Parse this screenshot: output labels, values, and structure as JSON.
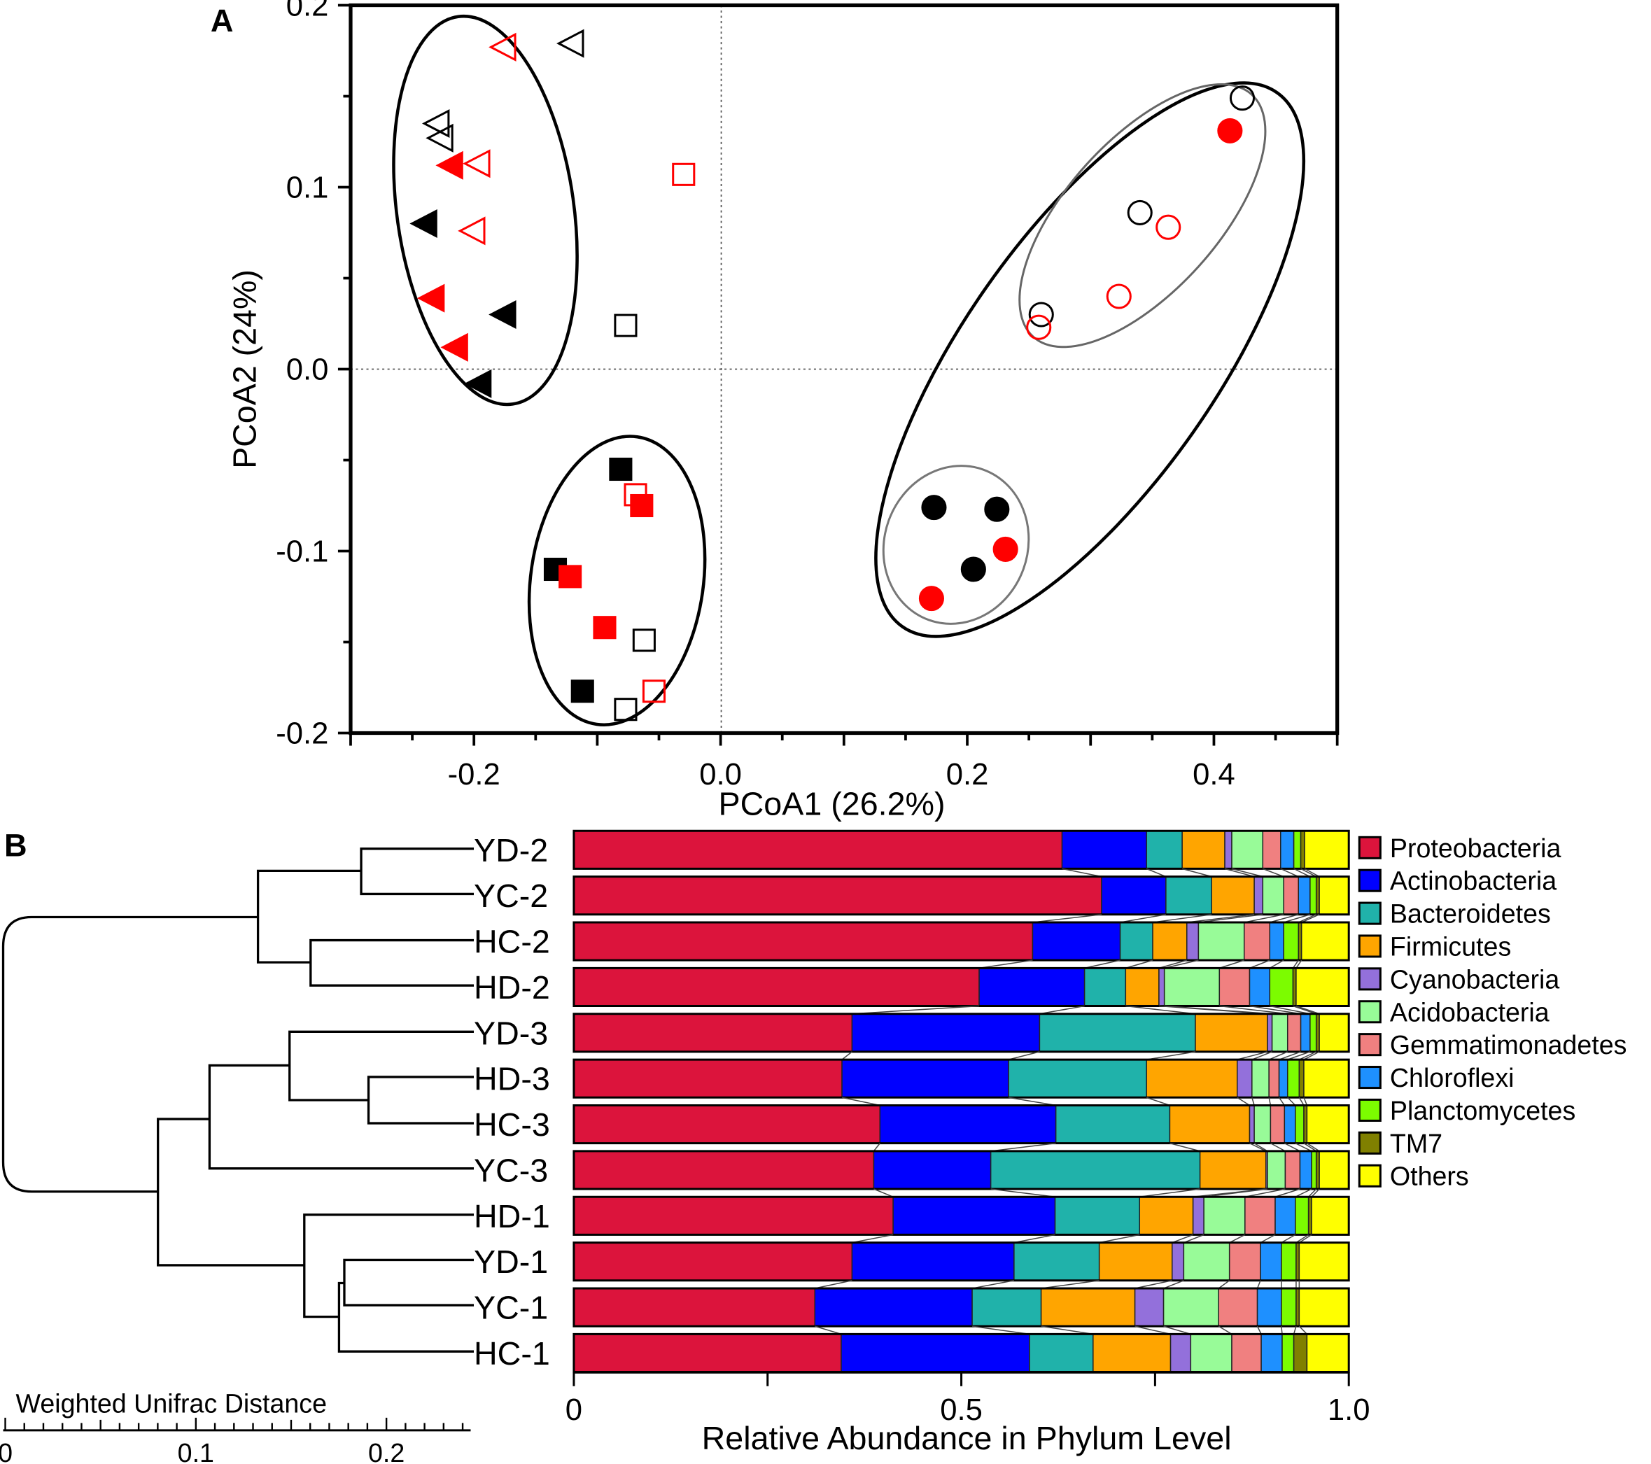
{
  "chart_data": [
    {
      "type": "scatter",
      "panel_label": "A",
      "xlabel": "PCoA1 (26.2%)",
      "ylabel": "PCoA2 (24%)",
      "xlim": [
        -0.3,
        0.5
      ],
      "ylim": [
        -0.2,
        0.2
      ],
      "x_ticks": [
        "-0.2",
        "0.0",
        "0.2",
        "0.4"
      ],
      "x_tick_values": [
        -0.2,
        0.0,
        0.2,
        0.4
      ],
      "y_ticks": [
        "0.2",
        "0.1",
        "0.0",
        "-0.1",
        "-0.2"
      ],
      "y_tick_values": [
        0.2,
        0.1,
        0.0,
        -0.1,
        -0.2
      ],
      "grid": false,
      "reference_lines": [
        0,
        0
      ],
      "series": [
        {
          "marker": "triangle-left",
          "color": "#000000",
          "filled": false,
          "points": [
            [
              -0.121,
              0.179
            ],
            [
              -0.23,
              0.135
            ],
            [
              -0.227,
              0.127
            ]
          ]
        },
        {
          "marker": "triangle-left",
          "color": "#ff0000",
          "filled": false,
          "points": [
            [
              -0.176,
              0.177
            ],
            [
              -0.197,
              0.113
            ],
            [
              -0.201,
              0.076
            ]
          ]
        },
        {
          "marker": "triangle-left",
          "color": "#ff0000",
          "filled": true,
          "points": [
            [
              -0.219,
              0.112
            ],
            [
              -0.234,
              0.039
            ],
            [
              -0.215,
              0.012
            ]
          ]
        },
        {
          "marker": "triangle-left",
          "color": "#000000",
          "filled": true,
          "points": [
            [
              -0.24,
              0.08
            ],
            [
              -0.176,
              0.03
            ],
            [
              -0.196,
              -0.008
            ]
          ]
        },
        {
          "marker": "square",
          "color": "#ff0000",
          "filled": false,
          "points": [
            [
              -0.03,
              0.107
            ],
            [
              -0.069,
              -0.069
            ],
            [
              -0.054,
              -0.177
            ]
          ]
        },
        {
          "marker": "square",
          "color": "#000000",
          "filled": false,
          "points": [
            [
              -0.077,
              0.024
            ],
            [
              -0.062,
              -0.149
            ],
            [
              -0.077,
              -0.187
            ]
          ]
        },
        {
          "marker": "square",
          "color": "#000000",
          "filled": true,
          "points": [
            [
              -0.081,
              -0.055
            ],
            [
              -0.134,
              -0.11
            ],
            [
              -0.112,
              -0.177
            ]
          ]
        },
        {
          "marker": "square",
          "color": "#ff0000",
          "filled": true,
          "points": [
            [
              -0.064,
              -0.075
            ],
            [
              -0.122,
              -0.114
            ],
            [
              -0.094,
              -0.142
            ]
          ]
        },
        {
          "marker": "circle",
          "color": "#000000",
          "filled": false,
          "points": [
            [
              0.423,
              0.149
            ],
            [
              0.34,
              0.086
            ],
            [
              0.26,
              0.03
            ]
          ]
        },
        {
          "marker": "circle",
          "color": "#ff0000",
          "filled": true,
          "points": [
            [
              0.413,
              0.131
            ],
            [
              0.231,
              -0.099
            ],
            [
              0.171,
              -0.126
            ]
          ]
        },
        {
          "marker": "circle",
          "color": "#ff0000",
          "filled": false,
          "points": [
            [
              0.363,
              0.078
            ],
            [
              0.323,
              0.04
            ],
            [
              0.258,
              0.023
            ]
          ]
        },
        {
          "marker": "circle",
          "color": "#000000",
          "filled": true,
          "points": [
            [
              0.173,
              -0.076
            ],
            [
              0.224,
              -0.077
            ],
            [
              0.205,
              -0.11
            ]
          ]
        }
      ]
    },
    {
      "type": "bar",
      "orientation": "horizontal-stacked",
      "panel_label": "B",
      "xlabel": "Relative Abundance in Phylum Level",
      "xlim": [
        0,
        1.0
      ],
      "x_ticks": [
        "0",
        "0.5",
        "1.0"
      ],
      "x_tick_values": [
        0,
        0.5,
        1.0
      ],
      "legend_position": "right",
      "phyla": [
        {
          "name": "Proteobacteria",
          "color": "#dc143c"
        },
        {
          "name": "Actinobacteria",
          "color": "#0000ff"
        },
        {
          "name": "Bacteroidetes",
          "color": "#20b2aa"
        },
        {
          "name": "Firmicutes",
          "color": "#ffa500"
        },
        {
          "name": "Cyanobacteria",
          "color": "#9370db"
        },
        {
          "name": "Acidobacteria",
          "color": "#98fb98"
        },
        {
          "name": "Gemmatimonadetes",
          "color": "#f08080"
        },
        {
          "name": "Chloroflexi",
          "color": "#1e90ff"
        },
        {
          "name": "Planctomycetes",
          "color": "#7cfc00"
        },
        {
          "name": "TM7",
          "color": "#808000"
        },
        {
          "name": "Others",
          "color": "#ffff00"
        }
      ],
      "samples": [
        {
          "name": "YD-2",
          "cumulative": [
            0.63,
            0.739,
            0.785,
            0.84,
            0.849,
            0.889,
            0.912,
            0.929,
            0.938,
            0.943,
            1
          ]
        },
        {
          "name": "YC-2",
          "cumulative": [
            0.681,
            0.764,
            0.823,
            0.878,
            0.889,
            0.916,
            0.935,
            0.95,
            0.958,
            0.962,
            1
          ]
        },
        {
          "name": "HC-2",
          "cumulative": [
            0.592,
            0.705,
            0.747,
            0.791,
            0.806,
            0.865,
            0.898,
            0.916,
            0.935,
            0.939,
            1
          ]
        },
        {
          "name": "HD-2",
          "cumulative": [
            0.523,
            0.659,
            0.712,
            0.755,
            0.762,
            0.833,
            0.872,
            0.898,
            0.928,
            0.932,
            1
          ]
        },
        {
          "name": "YD-3",
          "cumulative": [
            0.359,
            0.601,
            0.802,
            0.895,
            0.901,
            0.921,
            0.938,
            0.95,
            0.958,
            0.962,
            1
          ]
        },
        {
          "name": "HD-3",
          "cumulative": [
            0.346,
            0.561,
            0.739,
            0.856,
            0.875,
            0.897,
            0.91,
            0.921,
            0.936,
            0.942,
            1
          ]
        },
        {
          "name": "HC-3",
          "cumulative": [
            0.395,
            0.622,
            0.769,
            0.872,
            0.878,
            0.899,
            0.917,
            0.931,
            0.942,
            0.946,
            1
          ]
        },
        {
          "name": "YC-3",
          "cumulative": [
            0.387,
            0.538,
            0.808,
            0.893,
            0.895,
            0.918,
            0.937,
            0.952,
            0.958,
            0.962,
            1
          ]
        },
        {
          "name": "HD-1",
          "cumulative": [
            0.412,
            0.621,
            0.73,
            0.799,
            0.813,
            0.866,
            0.905,
            0.931,
            0.948,
            0.952,
            1
          ]
        },
        {
          "name": "YD-1",
          "cumulative": [
            0.359,
            0.568,
            0.678,
            0.772,
            0.787,
            0.846,
            0.886,
            0.913,
            0.932,
            0.936,
            1
          ]
        },
        {
          "name": "YC-1",
          "cumulative": [
            0.311,
            0.514,
            0.603,
            0.724,
            0.761,
            0.832,
            0.882,
            0.913,
            0.932,
            0.936,
            1
          ]
        },
        {
          "name": "HC-1",
          "cumulative": [
            0.345,
            0.588,
            0.67,
            0.77,
            0.796,
            0.849,
            0.887,
            0.914,
            0.929,
            0.946,
            1
          ]
        }
      ]
    },
    {
      "type": "dendrogram",
      "scale_title": "Weighted Unifrac Distance",
      "scale_ticks": [
        "0",
        "0.1",
        "0.2"
      ],
      "scale_tick_values": [
        0,
        0.1,
        0.2
      ]
    }
  ]
}
